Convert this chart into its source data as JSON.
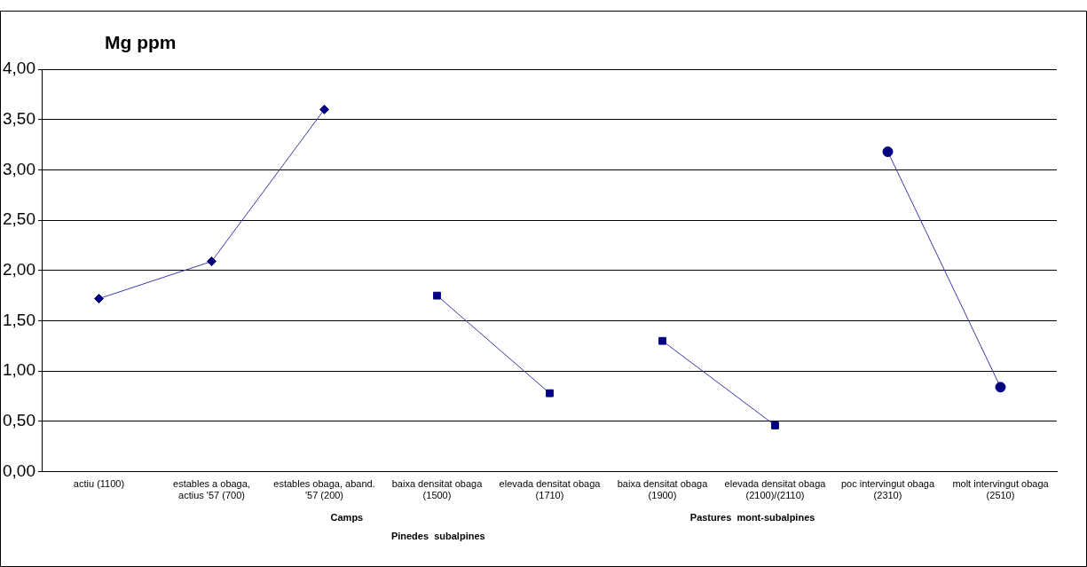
{
  "chart_data": {
    "type": "line",
    "title": "Mg ppm",
    "categories": [
      "actiu (1100)",
      "estables a obaga, actius '57 (700)",
      "estables obaga, aband. '57 (200)",
      "baixa densitat obaga (1500)",
      "elevada densitat obaga (1710)",
      "baixa densitat obaga (1900)",
      "elevada densitat obaga (2100)/(2110)",
      "poc intervingut obaga (2310)",
      "molt intervingut obaga (2510)"
    ],
    "series": [
      {
        "color": "#000080",
        "marker": "diamond",
        "values": [
          1.72,
          2.09,
          3.6,
          null,
          null,
          null,
          null,
          null,
          null
        ]
      },
      {
        "color": "#000080",
        "marker": "square",
        "values": [
          null,
          null,
          null,
          1.75,
          0.78,
          null,
          null,
          null,
          null
        ]
      },
      {
        "color": "#000080",
        "marker": "square",
        "values": [
          null,
          null,
          null,
          null,
          null,
          1.3,
          0.46,
          null,
          null
        ]
      },
      {
        "color": "#000080",
        "marker": "circle",
        "values": [
          null,
          null,
          null,
          null,
          null,
          null,
          null,
          3.18,
          0.84
        ]
      }
    ],
    "ylim": [
      0,
      4
    ],
    "yticks": [
      {
        "value": 0,
        "label": "0,00"
      },
      {
        "value": 0.5,
        "label": "0,50"
      },
      {
        "value": 1,
        "label": "1,00"
      },
      {
        "value": 1.5,
        "label": "1,50"
      },
      {
        "value": 2,
        "label": "2,00"
      },
      {
        "value": 2.5,
        "label": "2,50"
      },
      {
        "value": 3,
        "label": "3,00"
      },
      {
        "value": 3.5,
        "label": "3,50"
      },
      {
        "value": 4,
        "label": "4,00"
      }
    ],
    "grid": "y",
    "legend": false,
    "line_style": "solid",
    "annotations": [
      "Camps",
      "Pastures  mont-subalpines",
      "Pinedes  subalpines"
    ]
  }
}
